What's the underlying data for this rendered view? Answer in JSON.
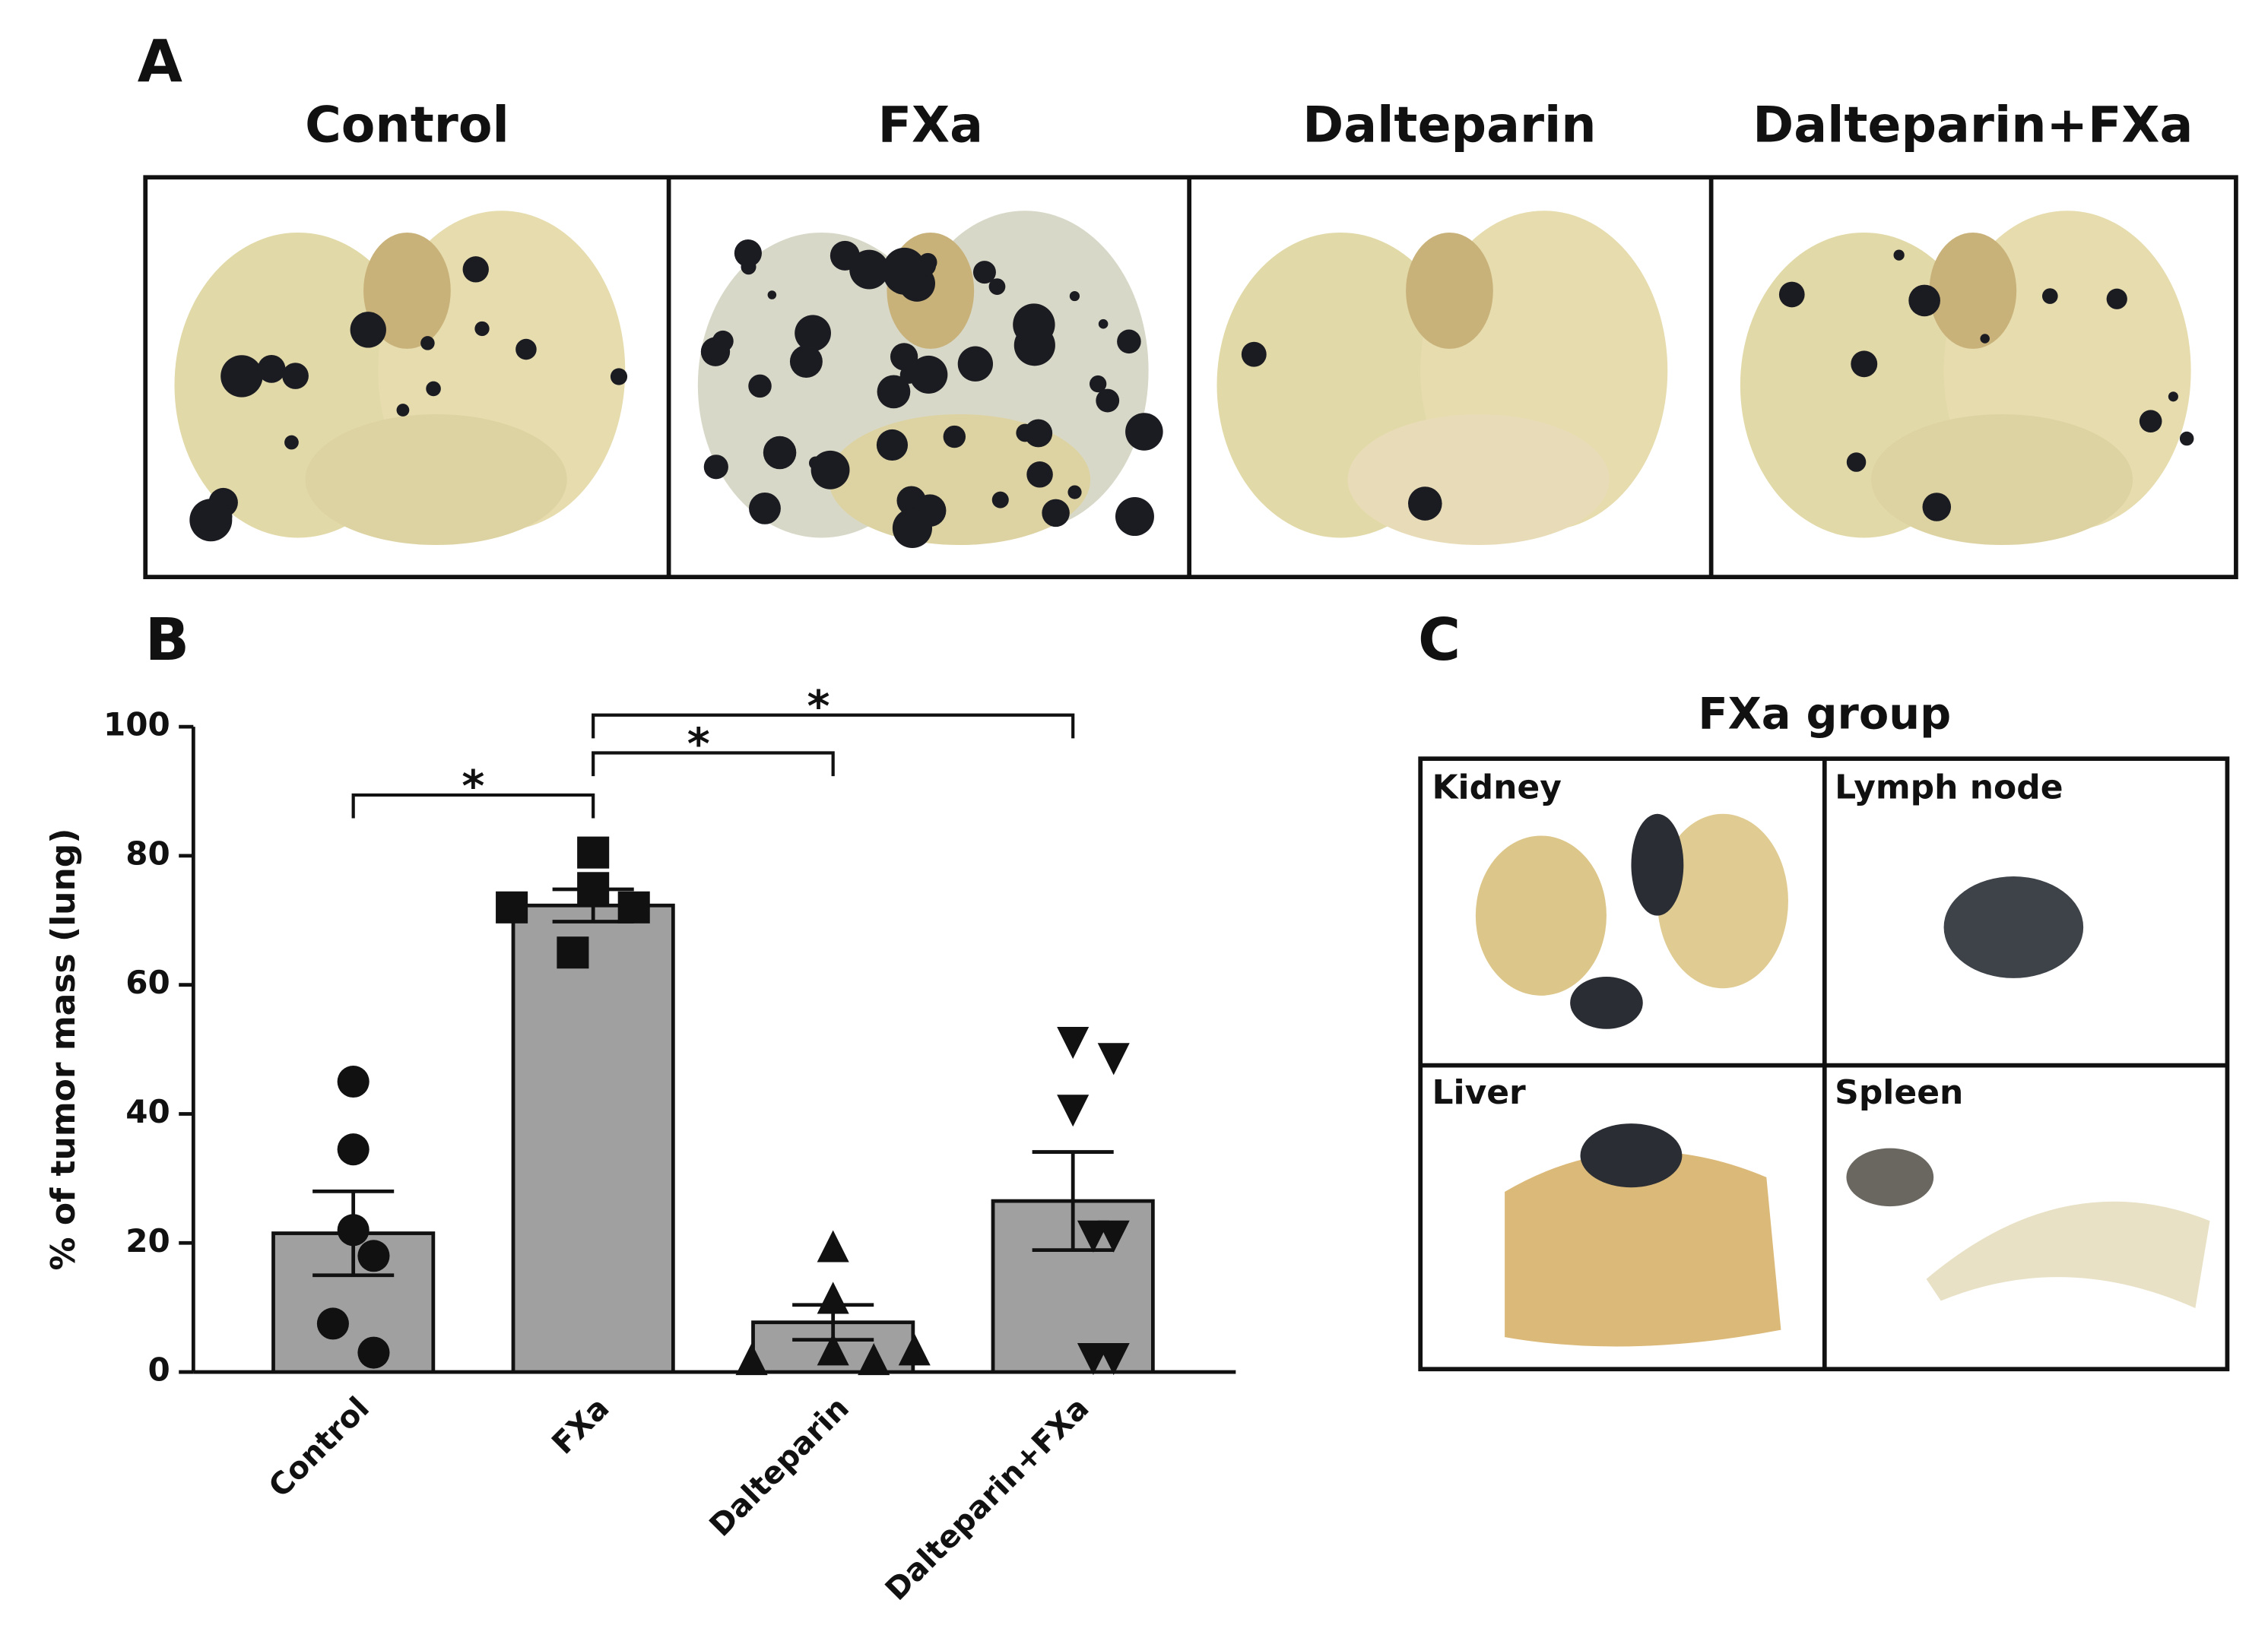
{
  "panels": {
    "a": {
      "label": "A",
      "titles": [
        "Control",
        "FXa",
        "Dalteparin",
        "Dalteparin+FXa"
      ]
    },
    "b": {
      "label": "B"
    },
    "c": {
      "label": "C",
      "title": "FXa group",
      "images": [
        "Kidney",
        "Lymph node",
        "Liver",
        "Spleen"
      ]
    }
  },
  "chart_data": {
    "type": "bar",
    "y_label": "% of tumor mass (lung)",
    "categories": [
      "Control",
      "FXa",
      "Dalteparin",
      "Dalteparin+FXa"
    ],
    "values": [
      21.5,
      72.3,
      7.7,
      26.5
    ],
    "errors": [
      6.5,
      2.5,
      2.7,
      7.6
    ],
    "points": [
      [
        45,
        34.5,
        22,
        18,
        7.5,
        3
      ],
      [
        80.5,
        75,
        72,
        72,
        65
      ],
      [
        19.5,
        11.5,
        3.5,
        2,
        2,
        3.5
      ],
      [
        51,
        48.5,
        40.5,
        21,
        21,
        2,
        2
      ]
    ],
    "markers": [
      "circle",
      "square",
      "triangle-up",
      "triangle-down"
    ],
    "color": "#a0a0a0",
    "ylim": [
      0,
      100
    ],
    "yticks": [
      0,
      20,
      40,
      60,
      80,
      100
    ],
    "annotations": [
      {
        "label": "*",
        "between": [
          "Control",
          "FXa"
        ]
      },
      {
        "label": "*",
        "between": [
          "FXa",
          "Dalteparin"
        ]
      },
      {
        "label": "*",
        "between": [
          "FXa",
          "Dalteparin+FXa"
        ]
      }
    ]
  }
}
